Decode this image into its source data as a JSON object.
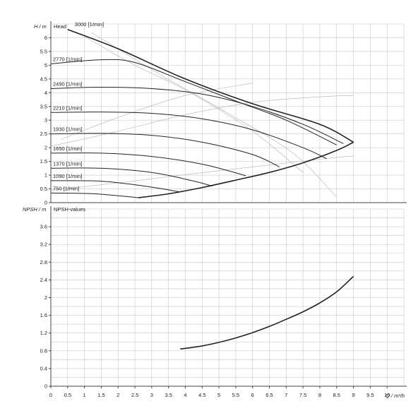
{
  "chart_data": [
    {
      "type": "line",
      "title": "Head",
      "ylabel": "H / m",
      "xlabel": "Q / m³/h",
      "xlim": [
        0,
        10.5
      ],
      "ylim": [
        0,
        6.5
      ],
      "x_ticks": [
        "0",
        "0.5",
        "1",
        "1.5",
        "2",
        "2.5",
        "3",
        "3.5",
        "4",
        "4.5",
        "5",
        "5.5",
        "6",
        "6.5",
        "7",
        "7.5",
        "8",
        "8.5",
        "9",
        "9.5",
        "10"
      ],
      "y_ticks": [
        "0",
        "0.5",
        "1",
        "1.5",
        "2",
        "2.5",
        "3",
        "3.5",
        "4",
        "4.5",
        "5",
        "5.5",
        "6"
      ],
      "grid": true,
      "series": [
        {
          "name": "3000 [1/min]",
          "label": "3000 [1/min]",
          "points": [
            [
              0.5,
              6.3
            ],
            [
              2,
              5.6
            ],
            [
              4,
              4.5
            ],
            [
              6,
              3.6
            ],
            [
              8,
              2.85
            ],
            [
              9,
              2.2
            ]
          ]
        },
        {
          "name": "2770 [1/min]",
          "label": "2770 [1/min]",
          "points": [
            [
              0,
              5.05
            ],
            [
              1.5,
              5.2
            ],
            [
              2.5,
              5.1
            ],
            [
              4,
              4.4
            ],
            [
              5.5,
              3.7
            ],
            [
              7,
              3.0
            ],
            [
              8.5,
              2.1
            ]
          ]
        },
        {
          "name": "2490 [1/min]",
          "label": "2490 [1/min]",
          "points": [
            [
              0,
              4.15
            ],
            [
              1.5,
              4.2
            ],
            [
              3,
              4.15
            ],
            [
              4.5,
              3.95
            ],
            [
              6,
              3.5
            ],
            [
              7.5,
              2.85
            ],
            [
              8.7,
              2.15
            ]
          ]
        },
        {
          "name": "2210 [1/min]",
          "label": "2210 [1/min]",
          "points": [
            [
              0,
              3.28
            ],
            [
              1.5,
              3.3
            ],
            [
              3,
              3.25
            ],
            [
              4.5,
              3.05
            ],
            [
              6,
              2.65
            ],
            [
              7.5,
              2.0
            ],
            [
              8.2,
              1.6
            ]
          ]
        },
        {
          "name": "1930 [1/min]",
          "label": "1930 [1/min]",
          "points": [
            [
              0,
              2.5
            ],
            [
              1.5,
              2.52
            ],
            [
              3,
              2.45
            ],
            [
              4.5,
              2.2
            ],
            [
              6,
              1.75
            ],
            [
              6.8,
              1.3
            ]
          ]
        },
        {
          "name": "1650 [1/min]",
          "label": "1650 [1/min]",
          "points": [
            [
              0,
              1.8
            ],
            [
              1.5,
              1.8
            ],
            [
              3,
              1.68
            ],
            [
              4.5,
              1.4
            ],
            [
              5.8,
              0.98
            ]
          ]
        },
        {
          "name": "1370 [1/min]",
          "label": "1370 [1/min]",
          "points": [
            [
              0,
              1.25
            ],
            [
              1.5,
              1.25
            ],
            [
              3,
              1.1
            ],
            [
              4.2,
              0.8
            ],
            [
              4.8,
              0.6
            ]
          ]
        },
        {
          "name": "1090 [1/min]",
          "label": "1090 [1/min]",
          "points": [
            [
              0,
              0.8
            ],
            [
              1.5,
              0.78
            ],
            [
              2.8,
              0.6
            ],
            [
              3.8,
              0.4
            ]
          ]
        },
        {
          "name": "750 [1/min]",
          "label": "750 [1/min]",
          "points": [
            [
              0,
              0.35
            ],
            [
              1.2,
              0.33
            ],
            [
              2,
              0.25
            ],
            [
              2.6,
              0.18
            ]
          ]
        }
      ],
      "lower_boundary": [
        [
          2.6,
          0.18
        ],
        [
          3.5,
          0.32
        ],
        [
          4.5,
          0.55
        ],
        [
          5.5,
          0.82
        ],
        [
          6.5,
          1.1
        ],
        [
          7.5,
          1.45
        ],
        [
          8.5,
          1.9
        ],
        [
          9,
          2.2
        ]
      ],
      "iso_lines": [
        [
          [
            0,
            2.05
          ],
          [
            2,
            2.6
          ],
          [
            4,
            3.2
          ],
          [
            6,
            3.65
          ],
          [
            8,
            3.85
          ],
          [
            9,
            3.9
          ]
        ],
        [
          [
            0.3,
            2.3
          ],
          [
            2,
            3.1
          ],
          [
            4,
            3.9
          ],
          [
            6,
            4.35
          ]
        ],
        [
          [
            0,
            0.45
          ],
          [
            2,
            0.72
          ],
          [
            4,
            1.02
          ],
          [
            6,
            1.3
          ],
          [
            8,
            1.58
          ],
          [
            9,
            1.7
          ]
        ],
        [
          [
            1,
            6.05
          ],
          [
            2.5,
            5.0
          ],
          [
            4,
            4.1
          ],
          [
            6,
            2.6
          ],
          [
            7.5,
            1.1
          ]
        ],
        [
          [
            1.2,
            6.2
          ],
          [
            3.2,
            4.7
          ],
          [
            5.2,
            3.3
          ],
          [
            7.2,
            1.8
          ],
          [
            8.5,
            0.2
          ]
        ]
      ]
    },
    {
      "type": "line",
      "title": "NPSH-values",
      "ylabel": "NPSH / m",
      "xlabel": "Q / m³/h",
      "xlim": [
        0,
        10.5
      ],
      "ylim": [
        0,
        4
      ],
      "y_ticks": [
        "0",
        "0.4",
        "0.8",
        "1.2",
        "1.6",
        "2",
        "2.4",
        "2.8",
        "3.2",
        "3.6"
      ],
      "grid": true,
      "series": [
        {
          "name": "NPSH",
          "points": [
            [
              3.85,
              0.84
            ],
            [
              4.5,
              0.91
            ],
            [
              5,
              0.99
            ],
            [
              5.5,
              1.09
            ],
            [
              6,
              1.21
            ],
            [
              6.5,
              1.35
            ],
            [
              7,
              1.51
            ],
            [
              7.5,
              1.68
            ],
            [
              8,
              1.88
            ],
            [
              8.5,
              2.13
            ],
            [
              9,
              2.48
            ]
          ]
        }
      ]
    }
  ]
}
